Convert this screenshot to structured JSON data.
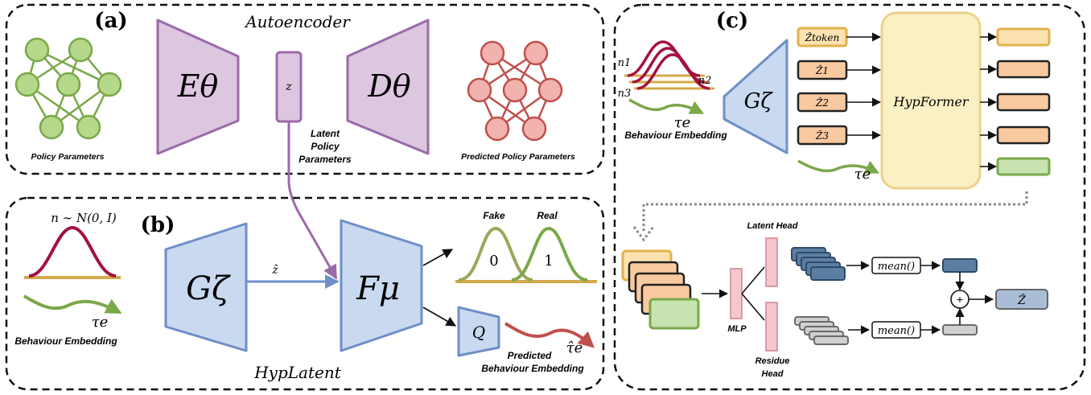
{
  "panels": {
    "a": {
      "tag": "(a)",
      "title": "Autoencoder",
      "encoder": "Eθ",
      "decoder": "Dθ",
      "latent": "z",
      "input_caption": "Policy Parameters",
      "output_caption": "Predicted Policy Parameters",
      "latent_caption": [
        "Latent",
        "Policy",
        "Parameters"
      ]
    },
    "b": {
      "tag": "(b)",
      "title": "HypLatent",
      "noise_label": "n ∼ N(0, I)",
      "tau": "τe",
      "embedding_caption": "Behaviour Embedding",
      "generator": "Gζ",
      "zhat": "ẑ",
      "discriminator": "Fμ",
      "fake_label": "Fake",
      "real_label": "Real",
      "fake_value": "0",
      "real_value": "1",
      "q_label": "Q",
      "tau_hat": "τ̂e",
      "predicted_caption": [
        "Predicted",
        "Behaviour Embedding"
      ]
    },
    "c": {
      "tag": "(c)",
      "n1": "n1",
      "n2": "n2",
      "n3": "n3",
      "tau": "τe",
      "embedding_caption": "Behaviour Embedding",
      "generator": "Gζ",
      "tokens": [
        "Ẑtoken",
        "Ẑ1",
        "Ẑ2",
        "Ẑ3"
      ],
      "hypformer": "HypFormer",
      "mlp": "MLP",
      "latent_head": "Latent Head",
      "residue_head": [
        "Residue",
        "Head"
      ],
      "mean_top": "mean()",
      "mean_bottom": "mean()",
      "plus": "+",
      "output": "Ẑ"
    }
  },
  "colors": {
    "purple_fill": "#dcc6e0",
    "purple_stroke": "#9b6aa8",
    "blue_fill": "#c9d9ef",
    "blue_stroke": "#6e8fc8",
    "green_node": "#b6d88a",
    "green_stroke": "#7aa84a",
    "red_node": "#f2b3ae",
    "red_stroke": "#c0504d",
    "gold": "#e0b24a",
    "crimson": "#a3123f",
    "peach": "#f9c9a0",
    "pale_yellow": "#fbefc4",
    "pink": "#f6c6cc",
    "navy": "#3f5f82",
    "gray": "#9a9a9a"
  }
}
